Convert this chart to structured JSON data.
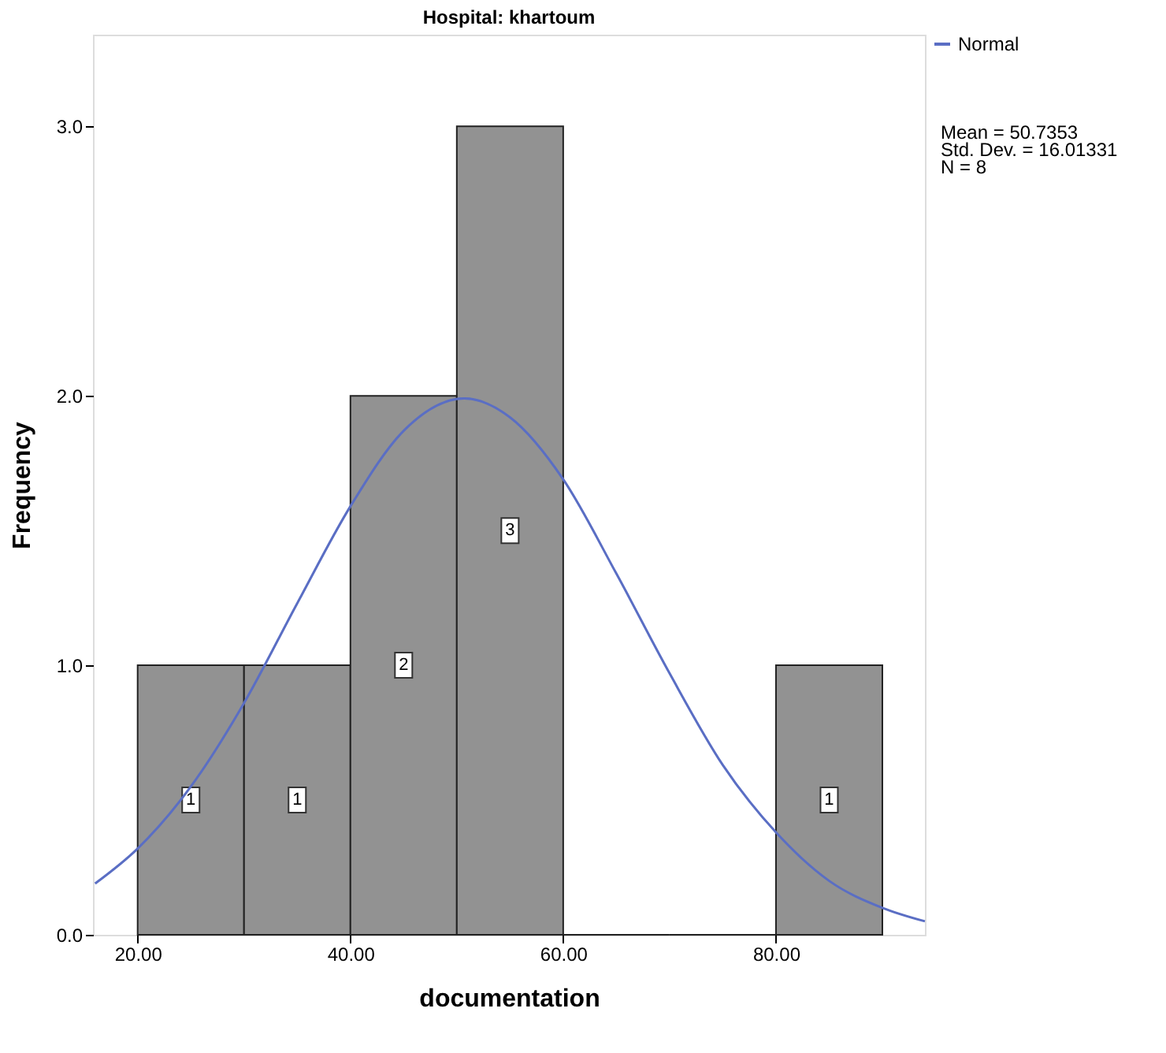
{
  "chart_data": {
    "type": "histogram",
    "title": "Hospital: khartoum",
    "xlabel": "documentation",
    "ylabel": "Frequency",
    "bins": [
      20,
      30,
      40,
      50,
      60,
      70,
      80,
      90
    ],
    "values": [
      1,
      1,
      2,
      3,
      0,
      0,
      1
    ],
    "value_labels": [
      "1",
      "1",
      "2",
      "3",
      null,
      null,
      "1"
    ],
    "color": "#929292",
    "series": [
      {
        "type": "line",
        "name": "Normal",
        "color": "#5a6ec4",
        "x": [
          16,
          20,
          25,
          30,
          35,
          40,
          45,
          50.7,
          55,
          60,
          65,
          70,
          75,
          80,
          85,
          90,
          94
        ],
        "values": [
          0.19,
          0.32,
          0.55,
          0.86,
          1.23,
          1.59,
          1.87,
          1.99,
          1.92,
          1.69,
          1.34,
          0.97,
          0.63,
          0.38,
          0.2,
          0.1,
          0.05
        ]
      }
    ],
    "xlim": [
      15.8,
      94
    ],
    "ylim": [
      0,
      3.34
    ],
    "xticks": [
      {
        "value": 20,
        "label": "20.00"
      },
      {
        "value": 40,
        "label": "40.00"
      },
      {
        "value": 60,
        "label": "60.00"
      },
      {
        "value": 80,
        "label": "80.00"
      }
    ],
    "yticks": [
      {
        "value": 0,
        "label": "0.0"
      },
      {
        "value": 1,
        "label": "1.0"
      },
      {
        "value": 2,
        "label": "2.0"
      },
      {
        "value": 3,
        "label": "3.0"
      }
    ],
    "legend": "top right",
    "grid": false,
    "annotations": [
      "Mean = 50.7353",
      "Std. Dev. = 16.01331",
      "N = 8"
    ]
  }
}
